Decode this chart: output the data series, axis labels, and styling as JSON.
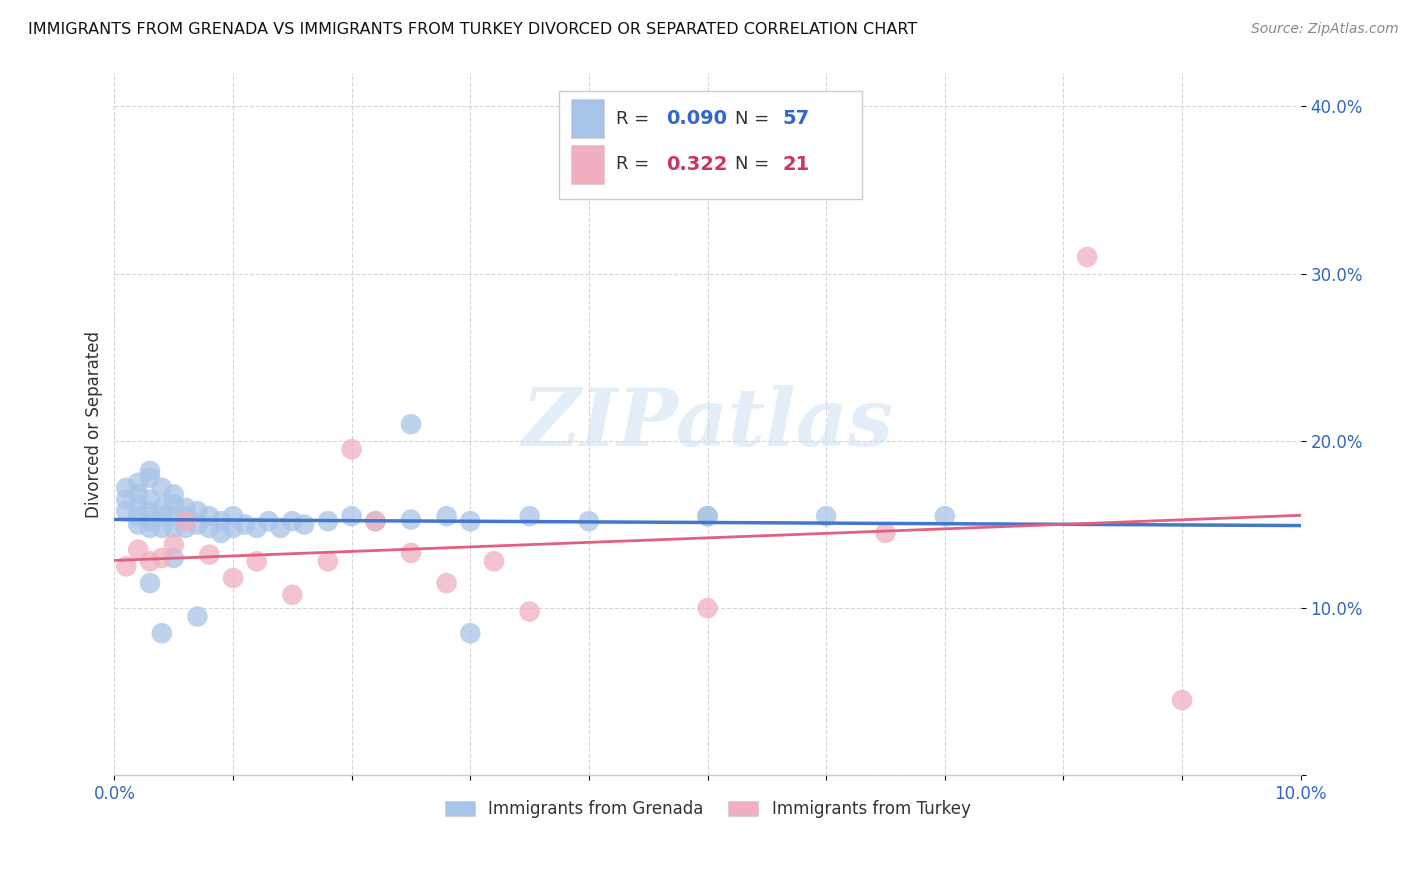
{
  "title": "IMMIGRANTS FROM GRENADA VS IMMIGRANTS FROM TURKEY DIVORCED OR SEPARATED CORRELATION CHART",
  "source": "Source: ZipAtlas.com",
  "ylabel": "Divorced or Separated",
  "xlim": [
    0.0,
    0.1
  ],
  "ylim": [
    0.0,
    0.42
  ],
  "xticks": [
    0.0,
    0.01,
    0.02,
    0.03,
    0.04,
    0.05,
    0.06,
    0.07,
    0.08,
    0.09,
    0.1
  ],
  "yticks": [
    0.0,
    0.1,
    0.2,
    0.3,
    0.4
  ],
  "ytick_labels": [
    "",
    "10.0%",
    "20.0%",
    "30.0%",
    "40.0%"
  ],
  "xtick_labels": [
    "0.0%",
    "",
    "",
    "",
    "",
    "",
    "",
    "",
    "",
    "",
    "10.0%"
  ],
  "grenada_color": "#a8c4e8",
  "turkey_color": "#f0b0c0",
  "grenada_line_color": "#4477cc",
  "turkey_line_color": "#e06080",
  "grenada_R": 0.09,
  "grenada_N": 57,
  "turkey_R": 0.322,
  "turkey_N": 21,
  "grenada_x": [
    0.001,
    0.001,
    0.001,
    0.002,
    0.002,
    0.002,
    0.002,
    0.002,
    0.003,
    0.003,
    0.003,
    0.003,
    0.003,
    0.003,
    0.004,
    0.004,
    0.004,
    0.004,
    0.005,
    0.005,
    0.005,
    0.005,
    0.006,
    0.006,
    0.006,
    0.007,
    0.007,
    0.008,
    0.008,
    0.009,
    0.009,
    0.01,
    0.01,
    0.011,
    0.012,
    0.013,
    0.014,
    0.015,
    0.016,
    0.018,
    0.02,
    0.022,
    0.025,
    0.028,
    0.03,
    0.035,
    0.04,
    0.05,
    0.06,
    0.07,
    0.003,
    0.004,
    0.005,
    0.007,
    0.025,
    0.03,
    0.05
  ],
  "grenada_y": [
    0.172,
    0.165,
    0.158,
    0.175,
    0.168,
    0.155,
    0.162,
    0.15,
    0.182,
    0.178,
    0.165,
    0.158,
    0.152,
    0.148,
    0.172,
    0.16,
    0.155,
    0.148,
    0.168,
    0.162,
    0.155,
    0.148,
    0.16,
    0.155,
    0.148,
    0.158,
    0.15,
    0.155,
    0.148,
    0.152,
    0.145,
    0.155,
    0.148,
    0.15,
    0.148,
    0.152,
    0.148,
    0.152,
    0.15,
    0.152,
    0.155,
    0.152,
    0.153,
    0.155,
    0.152,
    0.155,
    0.152,
    0.155,
    0.155,
    0.155,
    0.115,
    0.085,
    0.13,
    0.095,
    0.21,
    0.085,
    0.155
  ],
  "turkey_x": [
    0.001,
    0.002,
    0.003,
    0.004,
    0.005,
    0.006,
    0.008,
    0.01,
    0.012,
    0.015,
    0.018,
    0.02,
    0.022,
    0.025,
    0.028,
    0.032,
    0.035,
    0.05,
    0.065,
    0.082,
    0.09
  ],
  "turkey_y": [
    0.125,
    0.135,
    0.128,
    0.13,
    0.138,
    0.152,
    0.132,
    0.118,
    0.128,
    0.108,
    0.128,
    0.195,
    0.152,
    0.133,
    0.115,
    0.128,
    0.098,
    0.1,
    0.145,
    0.31,
    0.045
  ]
}
